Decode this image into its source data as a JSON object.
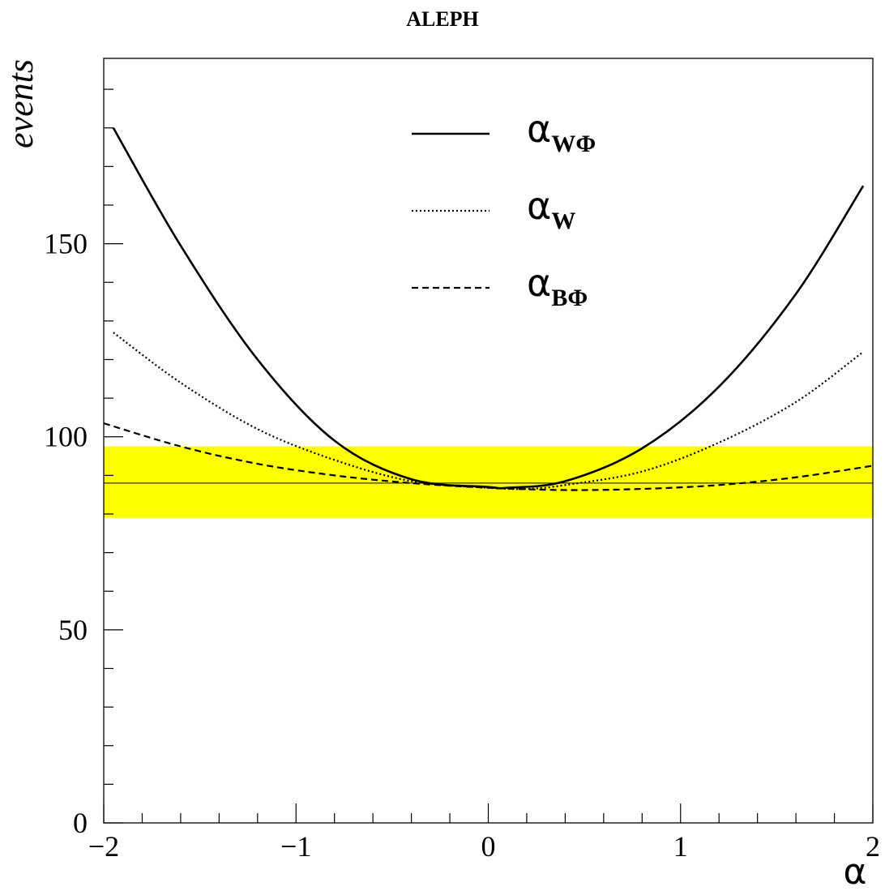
{
  "chart_data": {
    "type": "line",
    "title": "ALEPH",
    "xlabel": "α",
    "ylabel": "events",
    "xlim": [
      -2,
      2
    ],
    "ylim": [
      0,
      198
    ],
    "x_ticks": [
      {
        "value": -2,
        "label": "−2"
      },
      {
        "value": -1,
        "label": "−1"
      },
      {
        "value": 0,
        "label": "0"
      },
      {
        "value": 1,
        "label": "1"
      },
      {
        "value": 2,
        "label": "2"
      }
    ],
    "y_ticks": [
      {
        "value": 0,
        "label": "0"
      },
      {
        "value": 50,
        "label": "50"
      },
      {
        "value": 100,
        "label": "100"
      },
      {
        "value": 150,
        "label": "150"
      }
    ],
    "band": {
      "center": 88,
      "low": 79,
      "high": 97.5,
      "color": "#ffff00"
    },
    "series": [
      {
        "name": "α",
        "subscript": "WΦ",
        "style": "solid",
        "x": [
          -1.95,
          -1.6,
          -1.2,
          -0.8,
          -0.4,
          0.0,
          0.1,
          0.4,
          0.8,
          1.2,
          1.6,
          1.95
        ],
        "y": [
          180,
          149.5,
          120,
          99,
          89,
          87,
          86.8,
          88.5,
          97,
          113,
          137,
          165
        ]
      },
      {
        "name": "α",
        "subscript": "W",
        "style": "dotted",
        "x": [
          -1.95,
          -1.6,
          -1.2,
          -0.8,
          -0.4,
          0.0,
          0.2,
          0.4,
          0.8,
          1.2,
          1.6,
          1.95
        ],
        "y": [
          127,
          114,
          102,
          94,
          88.5,
          86.8,
          86.5,
          87.5,
          91,
          98.5,
          109,
          122
        ]
      },
      {
        "name": "α",
        "subscript": "BΦ",
        "style": "dashed",
        "x": [
          -2.0,
          -1.6,
          -1.2,
          -0.8,
          -0.4,
          0.0,
          0.4,
          0.8,
          1.2,
          1.6,
          2.0
        ],
        "y": [
          103.5,
          97.5,
          93,
          90,
          88,
          86.8,
          86.2,
          86.5,
          87.5,
          89.5,
          92.5
        ]
      }
    ]
  }
}
